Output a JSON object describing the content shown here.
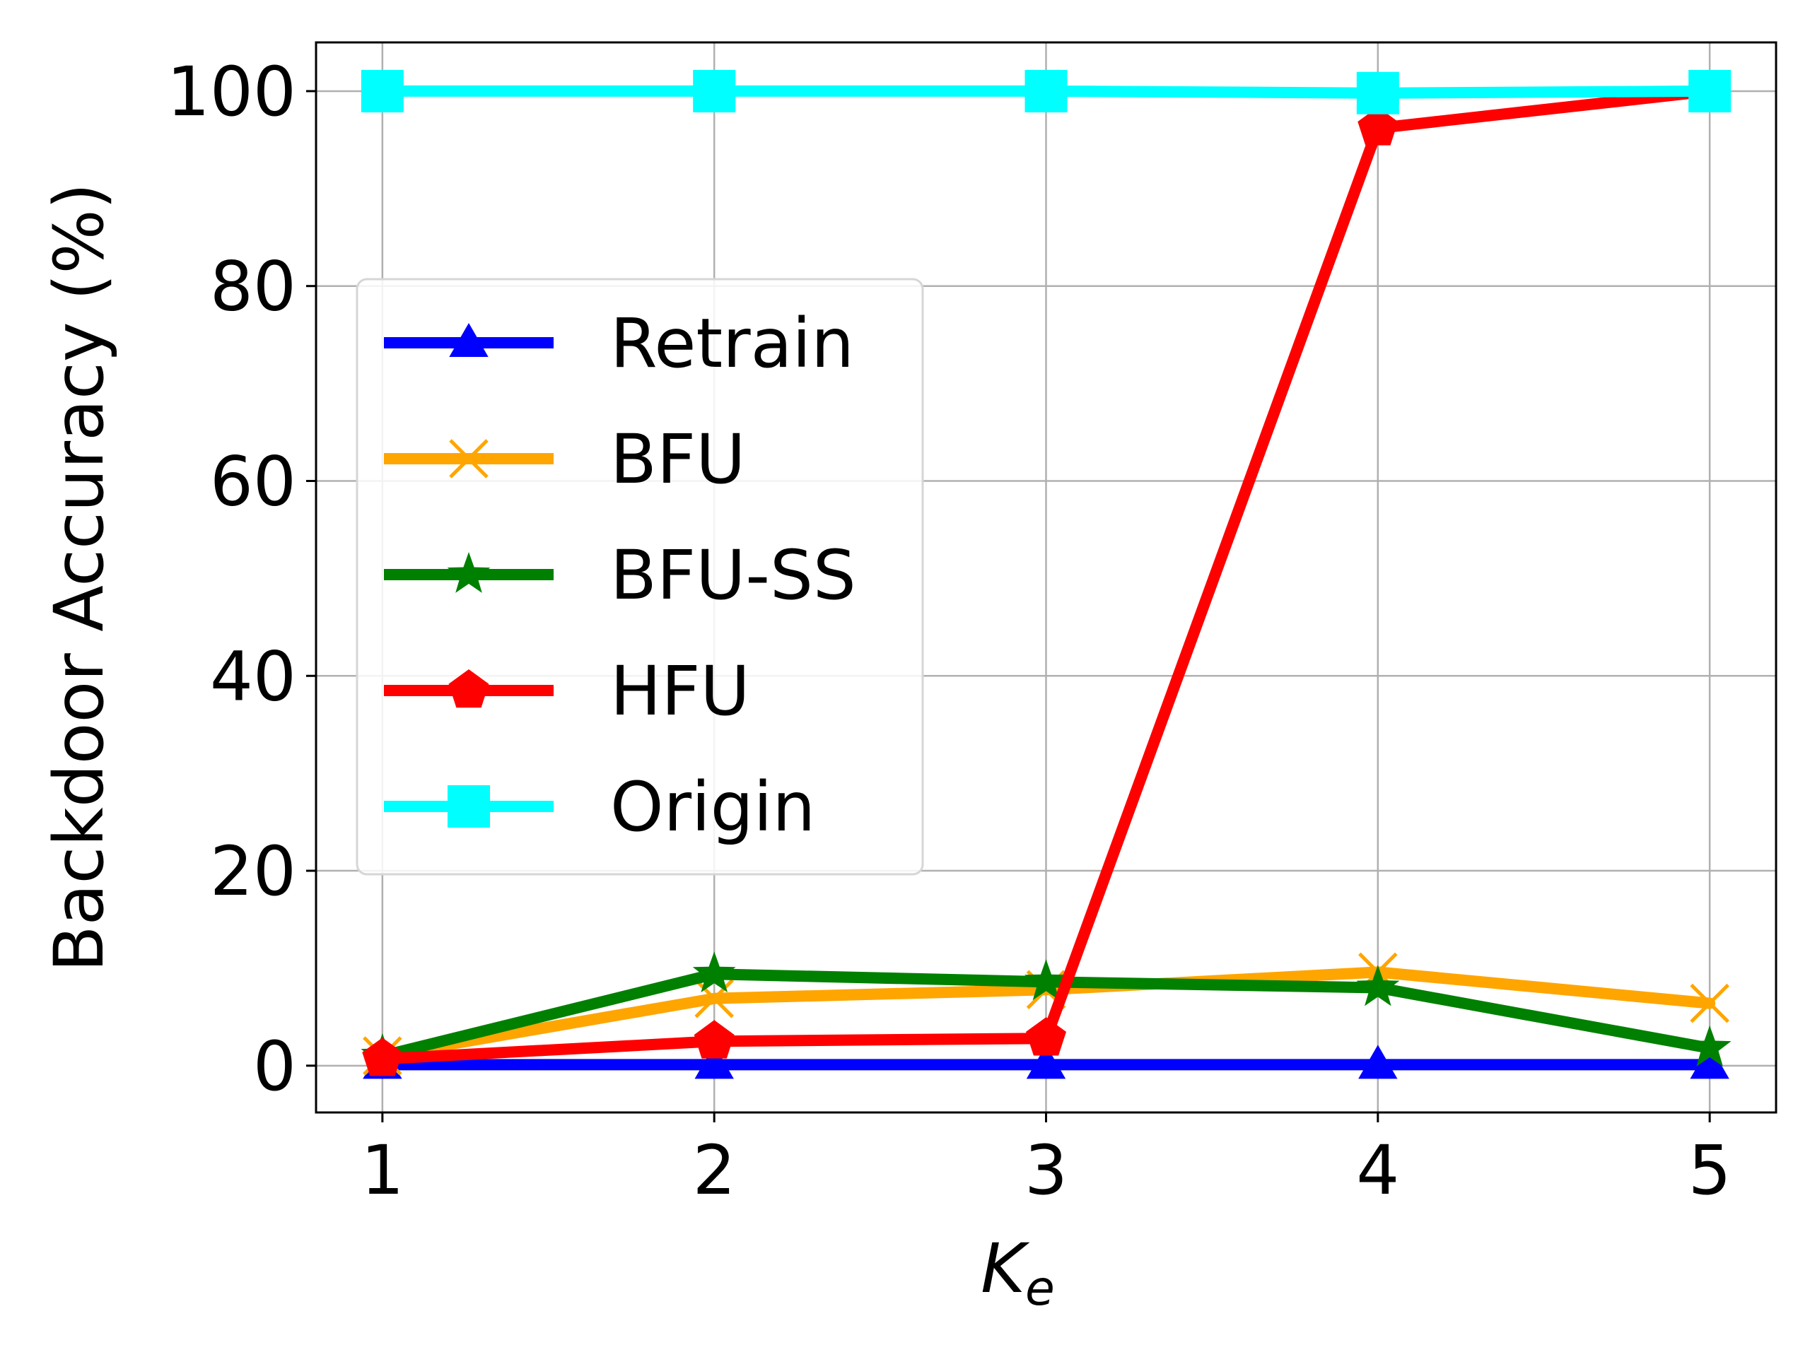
{
  "chart_data": {
    "type": "line",
    "title": "",
    "xlabel": "K",
    "xlabel_subscript": "e",
    "ylabel": "Backdoor Accuracy (%)",
    "x": [
      1,
      2,
      3,
      4,
      5
    ],
    "xlim": [
      0.8,
      5.2
    ],
    "ylim": [
      -4.8,
      105
    ],
    "xticks": [
      "1",
      "2",
      "3",
      "4",
      "5"
    ],
    "yticks": [
      "0",
      "20",
      "40",
      "60",
      "80",
      "100"
    ],
    "grid": true,
    "legend_position": "center-left",
    "series": [
      {
        "name": "Retrain",
        "color": "#0000ff",
        "marker": "triangle-up",
        "values": [
          0.1,
          0.1,
          0.1,
          0.1,
          0.1
        ]
      },
      {
        "name": "BFU",
        "color": "#ffa500",
        "marker": "x",
        "values": [
          1.0,
          6.9,
          7.8,
          9.6,
          6.4
        ]
      },
      {
        "name": "BFU-SS",
        "color": "#008000",
        "marker": "star",
        "values": [
          1.0,
          9.4,
          8.6,
          8.0,
          1.8
        ]
      },
      {
        "name": "HFU",
        "color": "#ff0000",
        "marker": "pentagon",
        "values": [
          0.7,
          2.5,
          2.8,
          96.2,
          100.0
        ]
      },
      {
        "name": "Origin",
        "color": "#00ffff",
        "marker": "square",
        "values": [
          100.0,
          100.0,
          100.0,
          99.8,
          100.0
        ]
      }
    ]
  }
}
